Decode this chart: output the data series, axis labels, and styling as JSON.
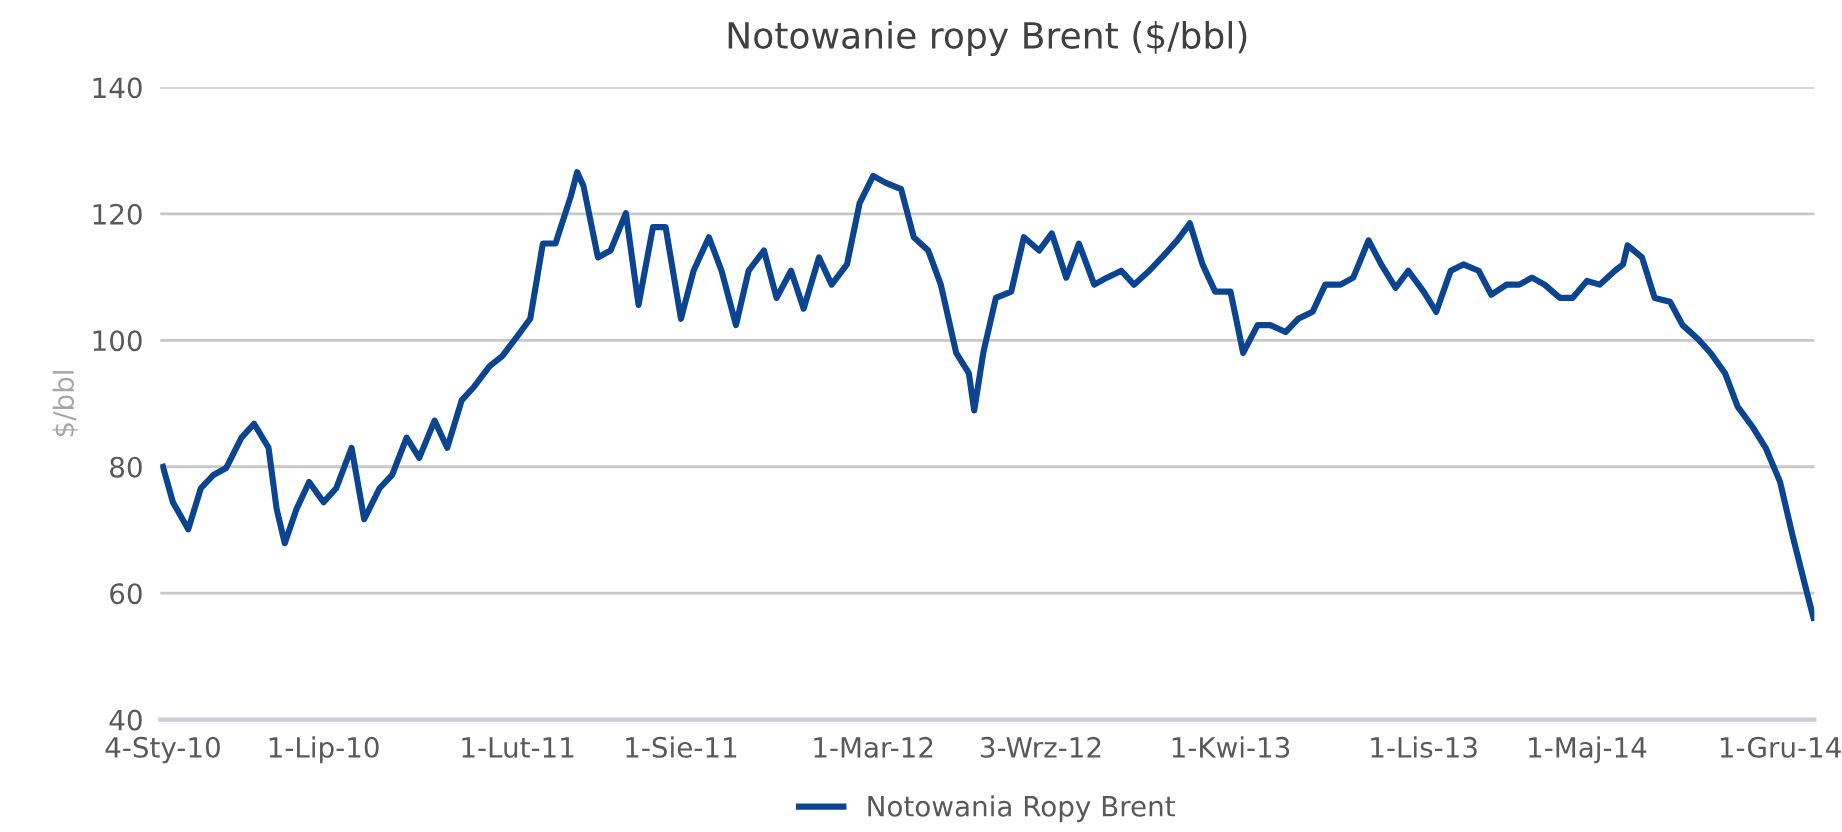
{
  "chart_data": {
    "type": "line",
    "title": "Notowanie ropy Brent ($/bbl)",
    "ylabel": "$/bbl",
    "x": [
      "2010-01-04",
      "2010-01-15",
      "2010-02-01",
      "2010-02-15",
      "2010-03-01",
      "2010-03-15",
      "2010-04-01",
      "2010-04-15",
      "2010-05-01",
      "2010-05-10",
      "2010-05-19",
      "2010-06-01",
      "2010-06-15",
      "2010-07-01",
      "2010-07-15",
      "2010-08-01",
      "2010-08-15",
      "2010-09-01",
      "2010-09-15",
      "2010-10-01",
      "2010-10-15",
      "2010-11-01",
      "2010-11-15",
      "2010-12-01",
      "2010-12-15",
      "2011-01-01",
      "2011-01-15",
      "2011-02-01",
      "2011-02-15",
      "2011-03-01",
      "2011-03-15",
      "2011-04-01",
      "2011-04-08",
      "2011-04-15",
      "2011-05-01",
      "2011-05-15",
      "2011-06-01",
      "2011-06-15",
      "2011-07-01",
      "2011-07-15",
      "2011-08-01",
      "2011-08-15",
      "2011-09-01",
      "2011-09-15",
      "2011-10-01",
      "2011-10-15",
      "2011-11-01",
      "2011-11-15",
      "2011-12-01",
      "2011-12-15",
      "2012-01-01",
      "2012-01-15",
      "2012-02-01",
      "2012-02-15",
      "2012-03-01",
      "2012-03-15",
      "2012-04-01",
      "2012-04-15",
      "2012-05-01",
      "2012-05-15",
      "2012-06-01",
      "2012-06-15",
      "2012-06-21",
      "2012-07-01",
      "2012-07-15",
      "2012-08-01",
      "2012-08-15",
      "2012-09-01",
      "2012-09-15",
      "2012-10-01",
      "2012-10-15",
      "2012-11-01",
      "2012-11-15",
      "2012-12-01",
      "2012-12-15",
      "2013-01-01",
      "2013-01-15",
      "2013-02-01",
      "2013-02-15",
      "2013-03-01",
      "2013-03-15",
      "2013-04-01",
      "2013-04-15",
      "2013-05-01",
      "2013-05-15",
      "2013-06-01",
      "2013-06-15",
      "2013-07-01",
      "2013-07-15",
      "2013-08-01",
      "2013-08-15",
      "2013-09-01",
      "2013-09-15",
      "2013-10-01",
      "2013-10-15",
      "2013-11-01",
      "2013-11-15",
      "2013-12-01",
      "2013-12-15",
      "2014-01-01",
      "2014-01-15",
      "2014-02-01",
      "2014-02-15",
      "2014-03-01",
      "2014-03-15",
      "2014-04-01",
      "2014-04-15",
      "2014-05-01",
      "2014-05-15",
      "2014-06-01",
      "2014-06-10",
      "2014-06-15",
      "2014-07-01",
      "2014-07-15",
      "2014-08-01",
      "2014-08-15",
      "2014-09-01",
      "2014-09-15",
      "2014-10-01",
      "2014-10-15",
      "2014-11-01",
      "2014-11-15",
      "2014-12-01",
      "2014-12-15",
      "2015-01-01",
      "2015-01-07"
    ],
    "series": [
      {
        "name": "Notowania Ropy Brent",
        "color": "#0b4591",
        "values": [
          80,
          74.4,
          70.1,
          76.6,
          78.7,
          79.8,
          84.6,
          86.8,
          83,
          73.3,
          67.9,
          73.3,
          77.6,
          74.4,
          76.6,
          83,
          71.7,
          76.6,
          78.7,
          84.6,
          81.4,
          87.3,
          83,
          90.5,
          92.7,
          95.9,
          97.5,
          100.7,
          103.4,
          115.3,
          115.3,
          122.8,
          126.6,
          124.4,
          113.1,
          114.2,
          120.1,
          105.6,
          117.9,
          117.9,
          103.4,
          111,
          116.3,
          111,
          102.4,
          111,
          114.2,
          106.7,
          111,
          105,
          113.1,
          108.8,
          112,
          121.7,
          126,
          124.9,
          123.9,
          116.3,
          114.2,
          108.8,
          98,
          94.8,
          88.9,
          98,
          106.7,
          107.7,
          116.3,
          114.2,
          116.9,
          109.9,
          115.3,
          108.8,
          109.9,
          111,
          108.8,
          111,
          113.1,
          115.8,
          118.5,
          112,
          107.7,
          107.7,
          98,
          102.4,
          102.4,
          101.3,
          103.4,
          104.5,
          108.8,
          108.8,
          109.9,
          115.8,
          112,
          108.3,
          111,
          107.7,
          104.5,
          111,
          112,
          111,
          107.2,
          108.8,
          108.8,
          109.9,
          108.8,
          106.7,
          106.7,
          109.4,
          108.8,
          111,
          112,
          115,
          113.1,
          106.7,
          106.1,
          102.4,
          100.2,
          98,
          94.8,
          89.5,
          86.2,
          83,
          77.6,
          69,
          59.4,
          56.1
        ]
      }
    ],
    "xlim": [
      "2010-01-01",
      "2015-01-08"
    ],
    "xticks": [
      {
        "value": "2010-01-04",
        "label": "4-Sty-10"
      },
      {
        "value": "2010-07-01",
        "label": "1-Lip-10"
      },
      {
        "value": "2011-02-01",
        "label": "1-Lut-11"
      },
      {
        "value": "2011-08-01",
        "label": "1-Sie-11"
      },
      {
        "value": "2012-03-01",
        "label": "1-Mar-12"
      },
      {
        "value": "2012-09-03",
        "label": "3-Wrz-12"
      },
      {
        "value": "2013-04-01",
        "label": "1-Kwi-13"
      },
      {
        "value": "2013-11-01",
        "label": "1-Lis-13"
      },
      {
        "value": "2014-05-01",
        "label": "1-Maj-14"
      },
      {
        "value": "2014-12-01",
        "label": "1-Gru-14"
      }
    ],
    "ylim": [
      40,
      140
    ],
    "yticks": [
      40,
      60,
      80,
      100,
      120,
      140
    ],
    "grid": "y",
    "legend": "bottom",
    "marker": "none",
    "line_style": "solid"
  }
}
